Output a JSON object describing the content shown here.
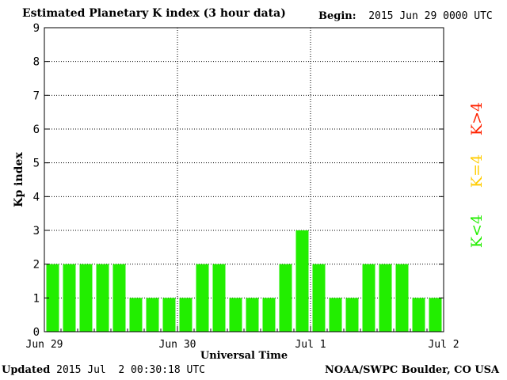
{
  "header": {
    "title": "Estimated Planetary K index (3 hour data)",
    "begin_label": "Begin:",
    "begin_value": "2015 Jun 29 0000 UTC"
  },
  "footer": {
    "updated_label": "Updated",
    "updated_value": "2015 Jul  2 00:30:18 UTC",
    "source": "NOAA/SWPC Boulder, CO USA"
  },
  "legend": [
    {
      "label": "K>4",
      "color": "#ff2200"
    },
    {
      "label": "K=4",
      "color": "#ffcc00"
    },
    {
      "label": "K<4",
      "color": "#22ee00"
    }
  ],
  "chart_data": {
    "type": "bar",
    "title": "Estimated Planetary K index (3 hour data)",
    "xlabel": "Universal Time",
    "ylabel": "Kp index",
    "ylim": [
      0,
      9
    ],
    "yticks": [
      0,
      1,
      2,
      3,
      4,
      5,
      6,
      7,
      8,
      9
    ],
    "xticks": [
      "Jun 29",
      "Jun 30",
      "Jul 1",
      "Jul 2"
    ],
    "grid": true,
    "bar_color": "#22ee00",
    "series": [
      {
        "values": [
          2,
          2,
          2,
          2,
          2,
          1,
          1,
          1,
          1,
          2,
          2,
          1,
          1,
          1,
          2,
          3,
          2,
          1,
          1,
          2,
          2,
          2,
          1,
          1
        ]
      }
    ]
  }
}
